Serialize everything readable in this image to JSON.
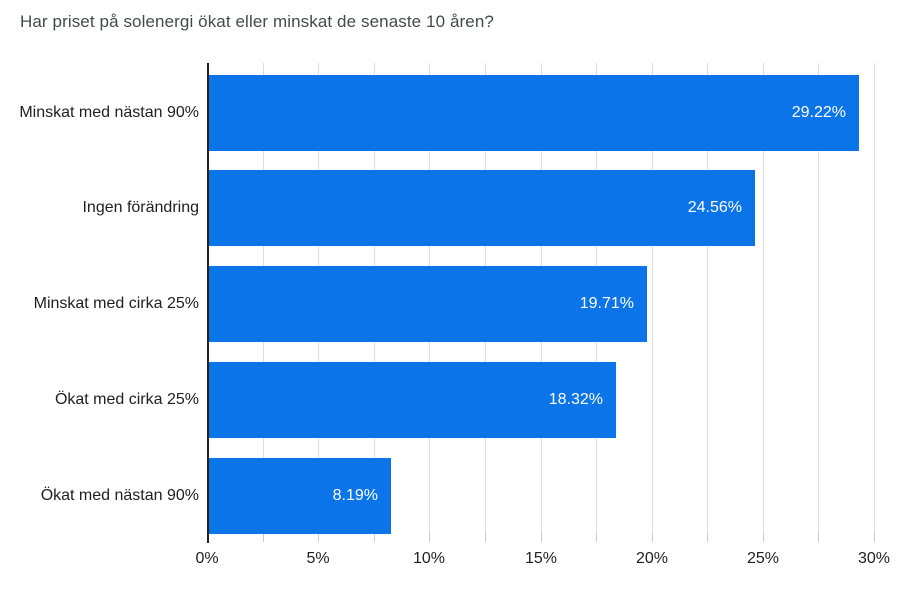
{
  "chart_data": {
    "type": "bar",
    "orientation": "horizontal",
    "title": "Har priset på solenergi ökat eller minskat de senaste 10 åren?",
    "categories": [
      "Minskat med nästan 90%",
      "Ingen förändring",
      "Minskat med cirka 25%",
      "Ökat med cirka 25%",
      "Ökat med nästan 90%"
    ],
    "values": [
      29.22,
      24.56,
      19.71,
      18.32,
      8.19
    ],
    "value_labels": [
      "29.22%",
      "24.56%",
      "19.71%",
      "18.32%",
      "8.19%"
    ],
    "xlabel": "",
    "ylabel": "",
    "xlim": [
      0,
      30
    ],
    "x_ticks": [
      0,
      5,
      10,
      15,
      20,
      25,
      30
    ],
    "x_tick_labels": [
      "0%",
      "5%",
      "10%",
      "15%",
      "20%",
      "25%",
      "30%"
    ],
    "minor_tick_step": 2.5,
    "grid": true,
    "grid_step": 2.5,
    "legend": false,
    "colors": {
      "bar": "#0b74e8",
      "value_label": "#ffffff",
      "axis_line": "#212121",
      "gridline": "#dcdcdc",
      "tick": "#c9c9c9",
      "tick_label": "#1f1f1f",
      "category_label": "#1f1f1f",
      "title": "#46494c",
      "background": "#ffffff"
    }
  }
}
